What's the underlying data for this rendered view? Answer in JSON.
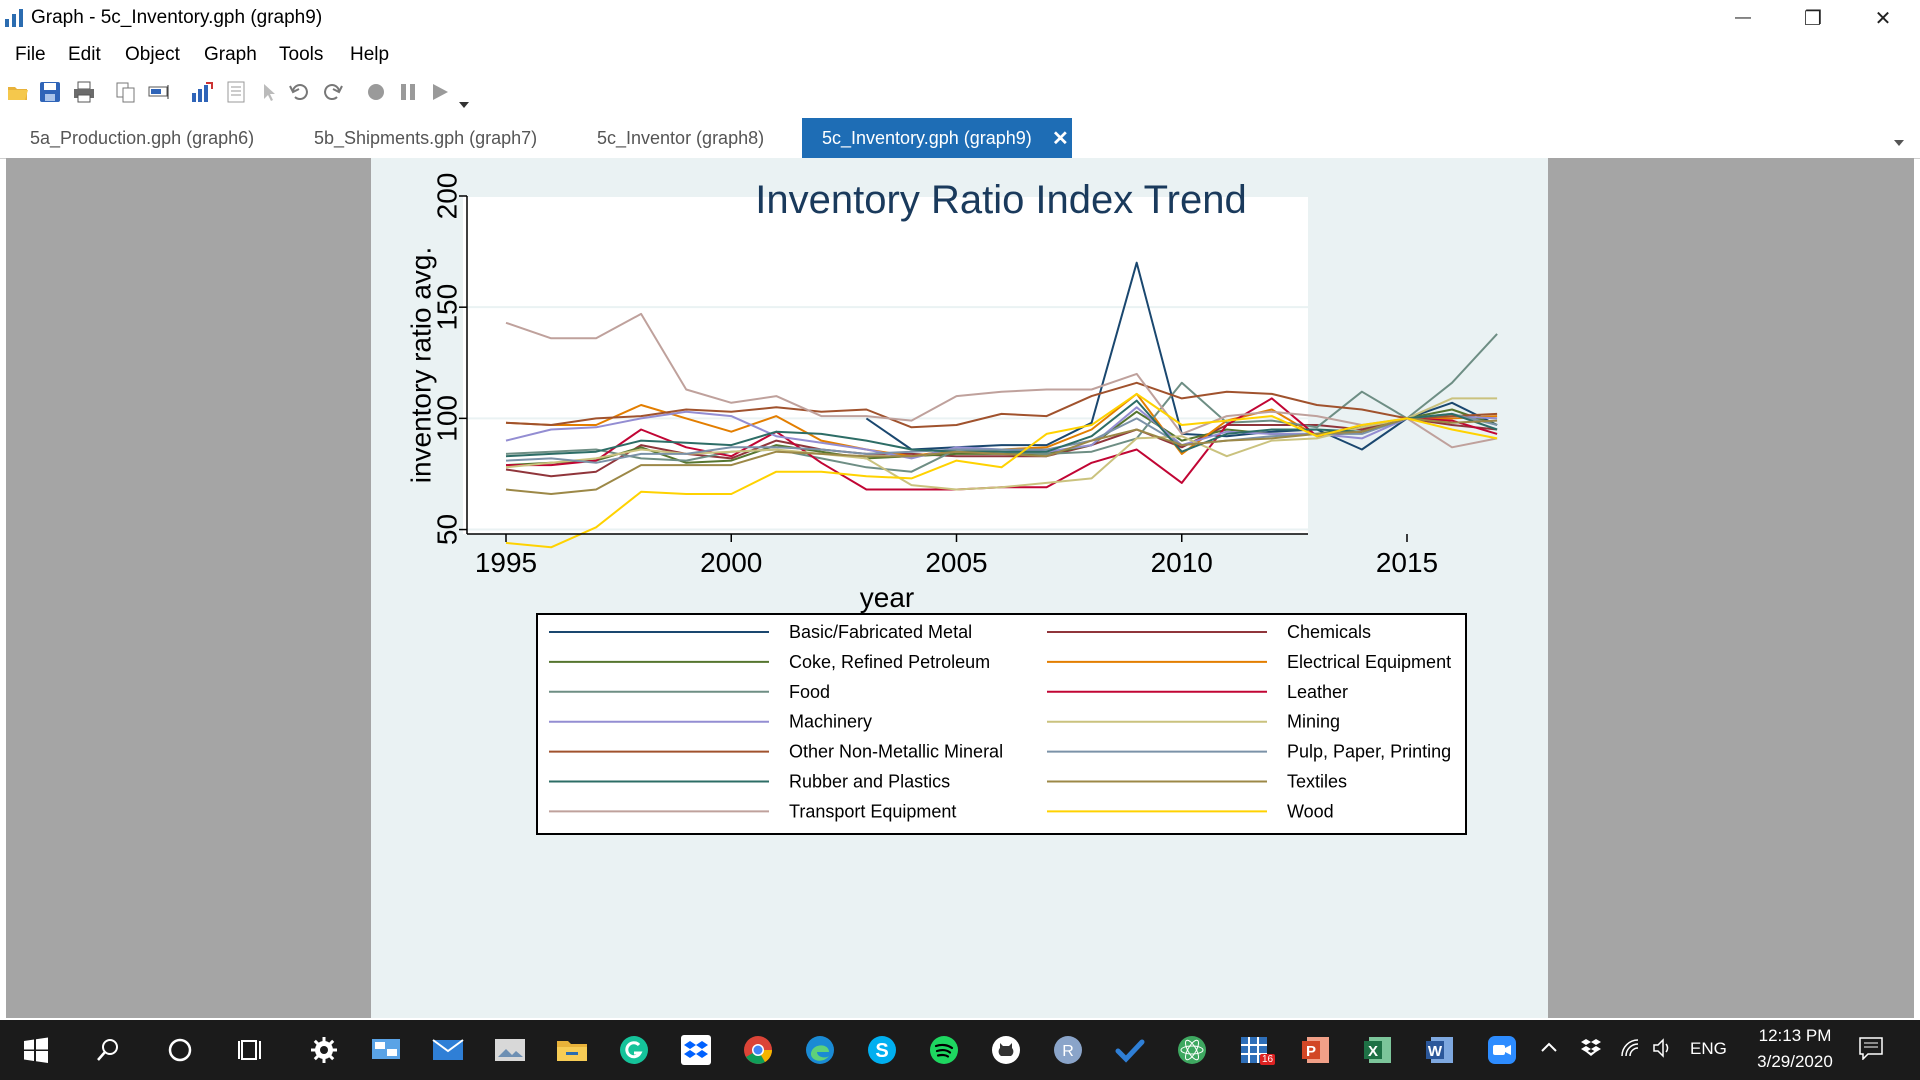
{
  "window": {
    "title": "Graph - 5c_Inventory.gph (graph9)",
    "minimize_glyph": "—",
    "maximize_glyph": "❐",
    "close_glyph": "✕"
  },
  "menu": [
    "File",
    "Edit",
    "Object",
    "Graph",
    "Tools",
    "Help"
  ],
  "toolbar_icons": [
    "open-icon",
    "save-icon",
    "print-icon",
    "copy-icon",
    "rename-icon",
    "graph-editor-icon",
    "properties-icon",
    "pointer-icon",
    "undo-icon",
    "redo-icon",
    "record-icon",
    "pause-icon",
    "play-icon"
  ],
  "tabs": [
    {
      "label": "5a_Production.gph (graph6)",
      "active": false
    },
    {
      "label": "5b_Shipments.gph (graph7)",
      "active": false
    },
    {
      "label": "5c_Inventor (graph8)",
      "active": false
    },
    {
      "label": "5c_Inventory.gph (graph9)",
      "active": true
    }
  ],
  "tab_close_glyph": "✕",
  "chart_data": {
    "type": "line",
    "title": "Inventory Ratio Index Trend",
    "xlabel": "year",
    "ylabel": "inventory ratio avg.",
    "xlim": [
      1995,
      2017
    ],
    "ylim": [
      50,
      200
    ],
    "xticks": [
      1995,
      2000,
      2005,
      2010,
      2015
    ],
    "yticks": [
      50,
      100,
      150,
      200
    ],
    "grid": true,
    "legend_position": "bottom",
    "x": [
      1995,
      1996,
      1997,
      1998,
      1999,
      2000,
      2001,
      2002,
      2003,
      2004,
      2005,
      2006,
      2007,
      2008,
      2009,
      2010,
      2011,
      2012,
      2013,
      2014,
      2015,
      2016,
      2017
    ],
    "series": [
      {
        "name": "Basic/Fabricated Metal",
        "color": "#1a476f",
        "values": [
          null,
          null,
          null,
          null,
          null,
          null,
          null,
          null,
          100,
          86,
          87,
          88,
          88,
          98,
          170,
          93,
          92,
          94,
          95,
          86,
          100,
          107,
          97
        ]
      },
      {
        "name": "Chemicals",
        "color": "#90353b",
        "values": [
          77,
          74,
          76,
          88,
          84,
          82,
          90,
          86,
          84,
          84,
          83,
          83,
          83,
          88,
          95,
          87,
          97,
          97,
          97,
          95,
          100,
          97,
          95
        ]
      },
      {
        "name": "Coke, Refined Petroleum",
        "color": "#55752f",
        "values": [
          79,
          80,
          81,
          87,
          80,
          81,
          88,
          85,
          82,
          83,
          84,
          84,
          84,
          88,
          103,
          90,
          95,
          93,
          93,
          96,
          100,
          104,
          97
        ]
      },
      {
        "name": "Electrical Equipment",
        "color": "#e37e00",
        "values": [
          98,
          97,
          97,
          106,
          100,
          94,
          101,
          90,
          86,
          83,
          86,
          86,
          87,
          95,
          111,
          84,
          99,
          104,
          92,
          94,
          100,
          100,
          101
        ]
      },
      {
        "name": "Food",
        "color": "#6e8e84",
        "values": [
          84,
          85,
          86,
          82,
          81,
          85,
          86,
          82,
          78,
          76,
          86,
          85,
          84,
          85,
          91,
          116,
          98,
          99,
          96,
          112,
          100,
          116,
          138
        ]
      },
      {
        "name": "Leather",
        "color": "#c10534",
        "values": [
          79,
          79,
          81,
          95,
          87,
          83,
          94,
          80,
          68,
          68,
          68,
          69,
          69,
          80,
          86,
          71,
          97,
          109,
          92,
          94,
          100,
          99,
          93
        ]
      },
      {
        "name": "Machinery",
        "color": "#938dd2",
        "values": [
          90,
          95,
          96,
          100,
          103,
          101,
          92,
          89,
          86,
          82,
          87,
          86,
          85,
          88,
          105,
          88,
          94,
          93,
          93,
          91,
          100,
          101,
          100
        ]
      },
      {
        "name": "Mining",
        "color": "#cac27e",
        "values": [
          78,
          80,
          82,
          86,
          84,
          85,
          86,
          84,
          82,
          70,
          68,
          69,
          71,
          73,
          91,
          92,
          83,
          90,
          91,
          96,
          100,
          109,
          109
        ]
      },
      {
        "name": "Other Non-Metallic Mineral",
        "color": "#a0522d",
        "values": [
          98,
          97,
          100,
          101,
          104,
          103,
          105,
          103,
          104,
          96,
          97,
          102,
          101,
          110,
          116,
          109,
          112,
          111,
          106,
          104,
          100,
          101,
          102
        ]
      },
      {
        "name": "Pulp, Paper, Printing",
        "color": "#7b92a8",
        "values": [
          81,
          82,
          80,
          84,
          84,
          87,
          87,
          86,
          84,
          85,
          86,
          86,
          86,
          90,
          100,
          88,
          90,
          92,
          93,
          93,
          100,
          102,
          97
        ]
      },
      {
        "name": "Rubber and Plastics",
        "color": "#2d6d66",
        "values": [
          83,
          84,
          85,
          90,
          89,
          88,
          94,
          93,
          90,
          86,
          85,
          85,
          85,
          92,
          108,
          85,
          93,
          95,
          95,
          94,
          100,
          102,
          95
        ]
      },
      {
        "name": "Textiles",
        "color": "#9c8847",
        "values": [
          68,
          66,
          68,
          79,
          79,
          79,
          85,
          84,
          83,
          83,
          85,
          84,
          83,
          90,
          95,
          88,
          90,
          91,
          93,
          94,
          100,
          98,
          99
        ]
      },
      {
        "name": "Transport Equipment",
        "color": "#bfa19c",
        "values": [
          143,
          136,
          136,
          147,
          113,
          107,
          110,
          101,
          101,
          99,
          110,
          112,
          113,
          113,
          120,
          93,
          101,
          103,
          101,
          97,
          100,
          87,
          91
        ]
      },
      {
        "name": "Wood",
        "color": "#ffd200",
        "values": [
          44,
          42,
          51,
          67,
          66,
          66,
          76,
          76,
          74,
          73,
          81,
          78,
          93,
          97,
          111,
          97,
          99,
          101,
          92,
          97,
          100,
          95,
          91
        ]
      }
    ]
  },
  "taskbar": {
    "apps": [
      "start-icon",
      "search-icon",
      "cortana-icon",
      "task-view-icon",
      "settings-icon",
      "control-panel-icon",
      "mail-icon",
      "photos-icon",
      "file-explorer-icon",
      "grammarly-icon",
      "dropbox-icon",
      "chrome-icon",
      "edge-icon",
      "skype-icon",
      "spotify-icon",
      "github-icon",
      "r-icon",
      "todo-icon",
      "atom-icon",
      "stata-icon",
      "powerpoint-icon",
      "excel-icon",
      "word-icon",
      "zoom-icon"
    ],
    "language": "ENG",
    "time": "12:13 PM",
    "date": "3/29/2020",
    "stata_badge": "16"
  }
}
